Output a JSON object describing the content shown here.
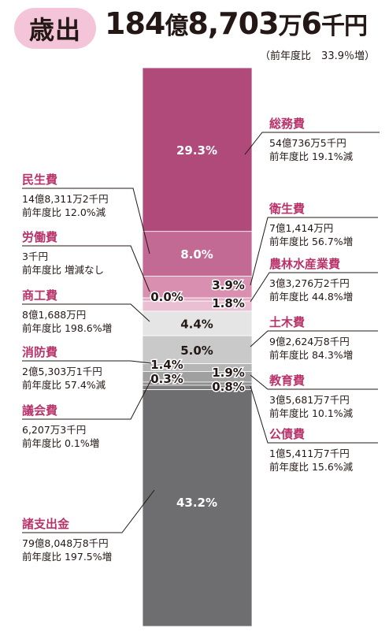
{
  "header": {
    "badge": "歳出",
    "total_num1": "184",
    "total_unit1": "億",
    "total_num2": "8,703",
    "total_unit2": "万",
    "total_num3": "6",
    "total_unit3": "千円",
    "note": "（前年度比　33.9％増）"
  },
  "colors": {
    "accent": "#b8336a",
    "soumu": "#b04a7a",
    "minsei": "#c36a94",
    "eisei": "#d98fb0",
    "rodo": "#e3a9c3",
    "norin": "#eabfd3",
    "shoko": "#e5e5e6",
    "doboku": "#c9c9ca",
    "shobo": "#b5b5b6",
    "kyoiku": "#a0a0a1",
    "gikai": "#8f8f90",
    "kosai": "#7e7e80",
    "shoshishutsu": "#6e6e70"
  },
  "chart_data": {
    "type": "stacked-bar",
    "unit": "%",
    "series": [
      {
        "key": "soumu",
        "name": "総務費",
        "value": 29.3,
        "label": "29.3%",
        "amount": "54億736万5千円",
        "change": "前年度比 19.1%減"
      },
      {
        "key": "minsei",
        "name": "民生費",
        "value": 8.0,
        "label": "8.0%",
        "amount": "14億8,311万2千円",
        "change": "前年度比 12.0%減"
      },
      {
        "key": "eisei",
        "name": "衛生費",
        "value": 3.9,
        "label": "3.9%",
        "amount": "7億1,414万円",
        "change": "前年度比 56.7%増"
      },
      {
        "key": "rodo",
        "name": "労働費",
        "value": 0.0,
        "label": "0.0%",
        "amount": "3千円",
        "change": "前年度比  増減なし"
      },
      {
        "key": "norin",
        "name": "農林水産業費",
        "value": 1.8,
        "label": "1.8%",
        "amount": "3億3,276万2千円",
        "change": "前年度比 44.8%増"
      },
      {
        "key": "shoko",
        "name": "商工費",
        "value": 4.4,
        "label": "4.4%",
        "amount": "8億1,688万円",
        "change": "前年度比 198.6%増"
      },
      {
        "key": "doboku",
        "name": "土木費",
        "value": 5.0,
        "label": "5.0%",
        "amount": "9億2,624万8千円",
        "change": "前年度比 84.3%増"
      },
      {
        "key": "shobo",
        "name": "消防費",
        "value": 1.4,
        "label": "1.4%",
        "amount": "2億5,303万1千円",
        "change": "前年度比 57.4%減"
      },
      {
        "key": "kyoiku",
        "name": "教育費",
        "value": 1.9,
        "label": "1.9%",
        "amount": "3億5,681万7千円",
        "change": "前年度比 10.1%減"
      },
      {
        "key": "gikai",
        "name": "議会費",
        "value": 0.3,
        "label": "0.3%",
        "amount": "6,207万3千円",
        "change": "前年度比 0.1%増"
      },
      {
        "key": "kosai",
        "name": "公債費",
        "value": 0.8,
        "label": "0.8%",
        "amount": "1億5,411万7千円",
        "change": "前年度比 15.6%減"
      },
      {
        "key": "shoshishutsu",
        "name": "諸支出金",
        "value": 43.2,
        "label": "43.2%",
        "amount": "79億8,048万8千円",
        "change": "前年度比 197.5%増"
      }
    ]
  }
}
